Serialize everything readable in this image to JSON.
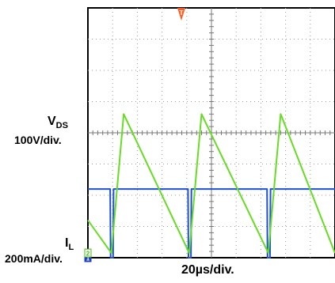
{
  "chart_data": {
    "type": "line",
    "title": "",
    "grid": true,
    "divisions": {
      "x": 10,
      "y": 8
    },
    "time_scale": "20µs/div.",
    "x_unit": "div",
    "trigger_marker": "T",
    "series": [
      {
        "name_main": "V",
        "name_sub": "DS",
        "scale": "100V/div.",
        "ground_marker": "1",
        "color": "#1f4fd6",
        "x": [
          0.0,
          0.9,
          0.92,
          1.02,
          1.04,
          4.05,
          4.07,
          4.17,
          4.19,
          7.25,
          7.27,
          7.37,
          7.39,
          10.0
        ],
        "y": [
          2.2,
          2.2,
          0.0,
          0.0,
          2.2,
          2.2,
          0.0,
          0.0,
          2.2,
          2.2,
          0.0,
          0.0,
          2.2,
          2.2
        ]
      },
      {
        "name_main": "I",
        "name_sub": "L",
        "scale": "200mA/div.",
        "ground_marker": "2",
        "color": "#66dd22",
        "x": [
          0.0,
          0.95,
          1.45,
          4.1,
          4.6,
          7.3,
          7.8,
          10.0
        ],
        "y": [
          1.2,
          0.15,
          4.6,
          0.15,
          4.6,
          0.15,
          4.6,
          0.15
        ]
      }
    ]
  }
}
